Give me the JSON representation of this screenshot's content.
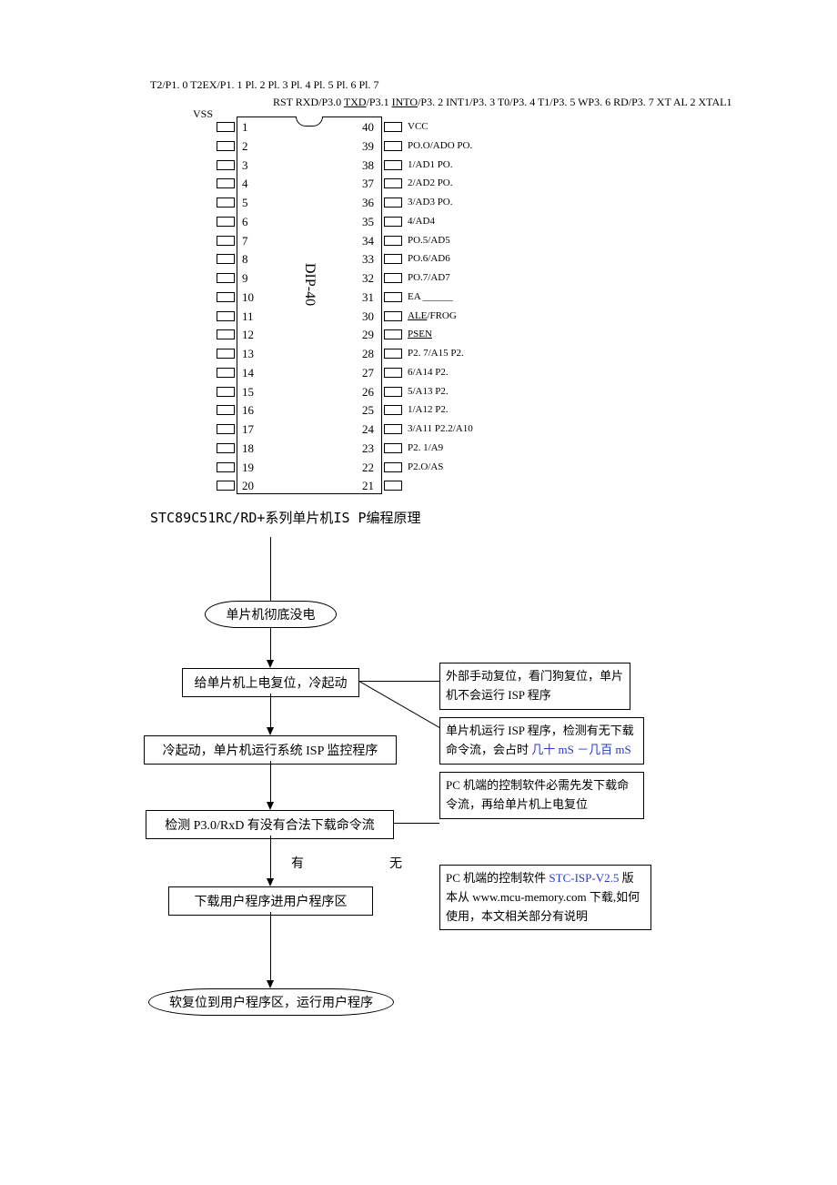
{
  "top_line1": "T2/P1. 0 T2EX/P1. 1 Pl. 2 Pl. 3 Pl. 4 Pl. 5 Pl. 6 Pl. 7",
  "top_line2_parts": {
    "p1": "RST RXD/P3.0 ",
    "u1": "TXD",
    "p2": "/P3.1 ",
    "u2": "INTO",
    "p3": "/P3. 2 INT1/P3. 3 T0/P3. 4 T1/P3. 5 WP3. 6 RD/P3. 7 XT AL 2 XTAL1"
  },
  "vss": "VSS",
  "chip_text": "DIP-40",
  "pins_left": [
    "1",
    "2",
    "3",
    "4",
    "5",
    "6",
    "7",
    "8",
    "9",
    "10",
    "11",
    "12",
    "13",
    "14",
    "15",
    "16",
    "17",
    "18",
    "19",
    "20"
  ],
  "pins_right": [
    "40",
    "39",
    "38",
    "37",
    "36",
    "35",
    "34",
    "33",
    "32",
    "31",
    "30",
    "29",
    "28",
    "27",
    "26",
    "25",
    "24",
    "23",
    "22",
    "21"
  ],
  "labels_right": [
    {
      "t": "VCC"
    },
    {
      "t": "PO.O/ADO  PO."
    },
    {
      "t": "1/AD1          PO."
    },
    {
      "t": "2/AD2          PO."
    },
    {
      "t": "3/AD3          PO."
    },
    {
      "t": "4/AD4"
    },
    {
      "t": "PO.5/AD5"
    },
    {
      "t": "PO.6/AD6"
    },
    {
      "t": "PO.7/AD7"
    },
    {
      "t": "EA ______"
    },
    {
      "t": "ALE/FROG",
      "u": "ALE"
    },
    {
      "t": "PSEN",
      "u": "PSEN"
    },
    {
      "t": "P2.   7/A15   P2."
    },
    {
      "t": "6/A14          P2."
    },
    {
      "t": "5/A13          P2."
    },
    {
      "t": "1/A12          P2."
    },
    {
      "t": "3/A11 P2.2/A10"
    },
    {
      "t": "P2.          1/A9"
    },
    {
      "t": "P2.O/AS"
    },
    {
      "t": ""
    }
  ],
  "title": "STC89C51RC/RD+系列单片机IS P编程原理",
  "flow": {
    "term1": "单片机彻底没电",
    "proc1": "给单片机上电复位，冷起动",
    "proc2": "冷起动，单片机运行系统 ISP 监控程序",
    "proc3": "检测 P3.0/RxD 有没有合法下载命令流",
    "yes": "有",
    "no": "无",
    "proc4": "下载用户程序进用户程序区",
    "term2": "软复位到用户程序区，运行用户程序",
    "note1": "外部手动复位，看门狗复位，单片机不会运行 ISP 程序",
    "note2_a": "单片机运行 ISP 程序，检测有无下载命令流，会占时",
    "note2_b": " 几十 mS －几百 mS",
    "note3": "PC 机端的控制软件必需先发下载命令流，再给单片机上电复位",
    "note4_a": "PC 机端的控制软件 ",
    "note4_b": "STC-ISP-V2.5 ",
    "note4_c": "版本从 www.mcu-memory.com 下载,如何使用，本文相关部分有说明"
  },
  "colors": {
    "text": "#000000",
    "blue": "#2838c8",
    "bg": "#ffffff"
  }
}
